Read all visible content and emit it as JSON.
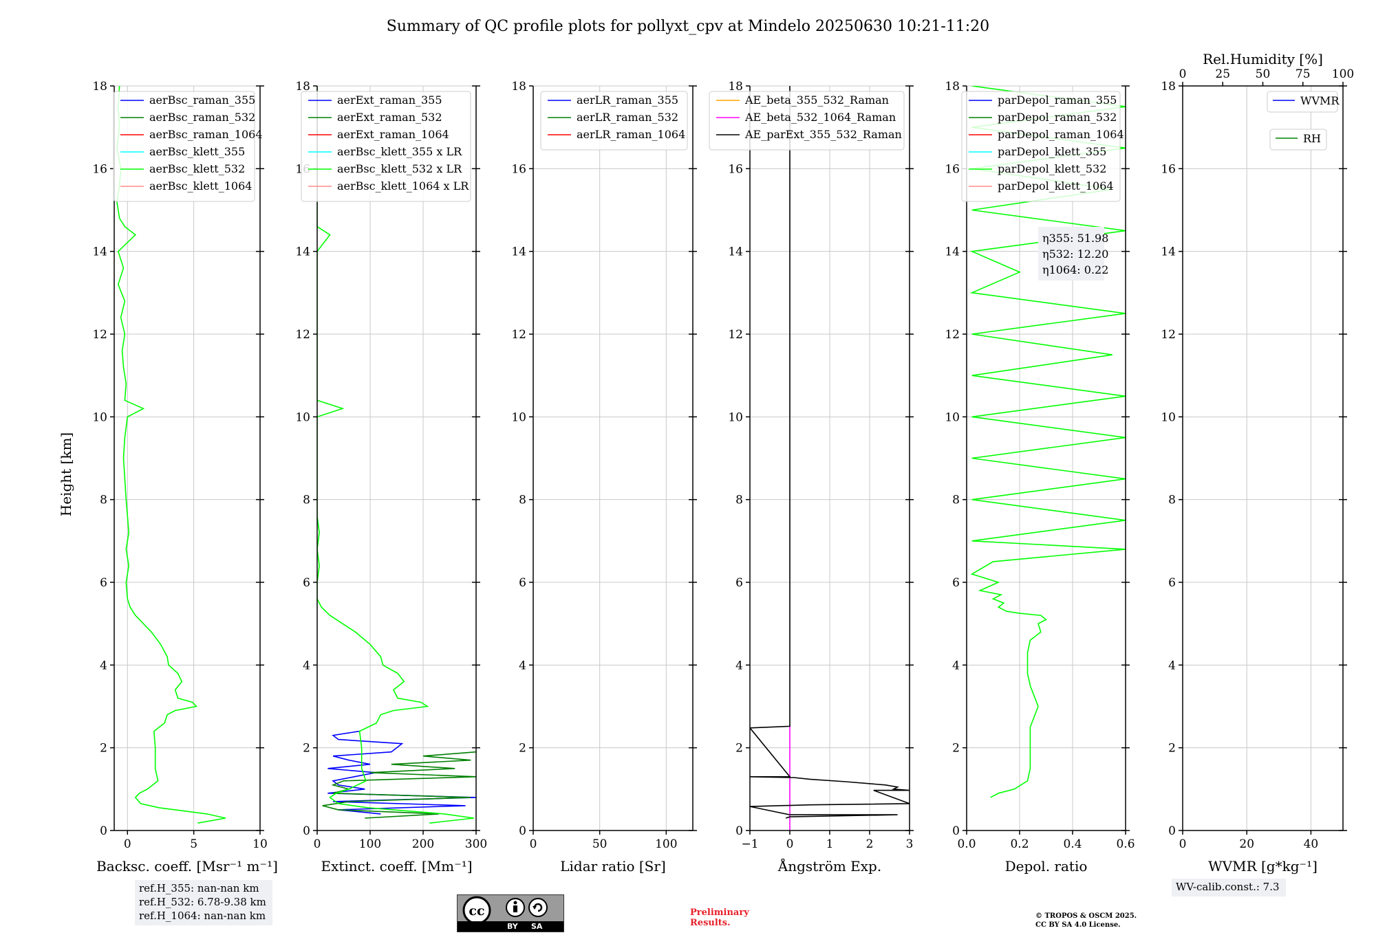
{
  "title": "Summary of QC profile plots for pollyxt_cpv at Mindelo 20250630 10:21-11:20",
  "y_axis_label": "Height [km]",
  "ref_heights": [
    "ref.H_355: nan-nan km",
    "ref.H_532: 6.78-9.38 km",
    "ref.H_1064: nan-nan km"
  ],
  "wv_calib": "WV-calib.const.: 7.3",
  "preliminary": [
    "Preliminary",
    "Results."
  ],
  "copyright": [
    "© TROPOS & OSCM 2025.",
    "CC BY SA 4.0 License."
  ],
  "cc_badge": {
    "by": "BY",
    "sa": "SA",
    "icon": "cc-by-sa-icon"
  },
  "colors": {
    "raman_355": "#0000ff",
    "raman_532": "#008000",
    "raman_1064": "#ff0000",
    "klett_355": "#00ffff",
    "klett_532": "#00ff00",
    "klett_1064": "#ff8c8c",
    "ae_355_532": "#ffa500",
    "ae_532_1064": "#ff00ff",
    "ae_parext": "#000000",
    "grid": "#c8c8c8"
  },
  "chart_data": [
    {
      "type": "line",
      "xlabel": "Backsc. coeff. [Msr⁻¹ m⁻¹]",
      "ylabel": "Height [km]",
      "xlim": [
        -1,
        10
      ],
      "ylim": [
        0,
        18
      ],
      "grid": true,
      "legend": "top-right",
      "xticks": [
        "0",
        "5",
        "10"
      ],
      "yticks": [
        "0",
        "2",
        "4",
        "6",
        "8",
        "10",
        "12",
        "14",
        "16",
        "18"
      ],
      "series": [
        {
          "name": "aerBsc_raman_355",
          "y": [],
          "x": []
        },
        {
          "name": "aerBsc_raman_532",
          "y": [],
          "x": []
        },
        {
          "name": "aerBsc_raman_1064",
          "y": [],
          "x": []
        },
        {
          "name": "aerBsc_klett_355",
          "y": [],
          "x": []
        },
        {
          "name": "aerBsc_klett_532",
          "y": [
            0.18,
            0.3,
            0.4,
            0.5,
            0.55,
            0.65,
            0.8,
            0.9,
            1.0,
            1.2,
            1.5,
            2.0,
            2.4,
            2.6,
            2.8,
            2.9,
            3.0,
            3.1,
            3.2,
            3.4,
            3.6,
            3.8,
            4.0,
            4.2,
            4.5,
            4.8,
            5.0,
            5.2,
            5.4,
            5.6,
            6.0,
            6.4,
            6.8,
            7.2,
            7.6,
            8.0,
            8.5,
            9.0,
            9.5,
            10.0,
            10.2,
            10.4,
            10.8,
            11.2,
            11.6,
            12.0,
            12.4,
            12.8,
            13.2,
            13.6,
            14.0,
            14.4,
            14.6,
            14.8,
            15.2,
            15.6,
            16.0,
            16.5,
            17.0,
            17.5,
            18.0
          ],
          "x": [
            5.3,
            7.4,
            6.0,
            3.6,
            2.4,
            1.0,
            0.6,
            0.9,
            1.5,
            2.3,
            2.1,
            2.1,
            2.0,
            2.8,
            3.0,
            3.6,
            5.2,
            4.9,
            3.8,
            3.6,
            4.1,
            3.8,
            3.1,
            3.0,
            2.5,
            1.8,
            1.2,
            0.6,
            0.2,
            0.0,
            -0.1,
            0.1,
            -0.1,
            0.1,
            0.0,
            -0.1,
            -0.2,
            -0.3,
            -0.2,
            0.0,
            1.2,
            -0.2,
            -0.1,
            -0.3,
            -0.4,
            -0.2,
            -0.5,
            -0.2,
            -0.7,
            -0.3,
            -0.7,
            0.6,
            -0.2,
            -0.6,
            -0.8,
            -0.6,
            -0.5,
            -0.8,
            -0.6,
            -0.7,
            -0.6
          ]
        },
        {
          "name": "aerBsc_klett_1064",
          "y": [],
          "x": []
        }
      ]
    },
    {
      "type": "line",
      "xlabel": "Extinct. coeff. [Mm⁻¹]",
      "ylabel": "",
      "xlim": [
        0,
        300
      ],
      "ylim": [
        0,
        18
      ],
      "grid": true,
      "legend": "top-right",
      "xticks": [
        "0",
        "100",
        "200",
        "300"
      ],
      "yticks": [
        "0",
        "2",
        "4",
        "6",
        "8",
        "10",
        "12",
        "14",
        "16",
        "18"
      ],
      "series": [
        {
          "name": "aerExt_raman_355",
          "y": [
            0.4,
            0.5,
            0.6,
            0.7,
            0.8,
            0.9,
            1.0,
            1.1,
            1.2,
            1.3,
            1.4,
            1.5,
            1.6,
            1.7,
            1.8,
            1.9,
            2.0,
            2.1,
            2.2,
            2.3,
            2.4
          ],
          "x": [
            120,
            40,
            280,
            30,
            300,
            20,
            90,
            40,
            30,
            70,
            110,
            20,
            100,
            60,
            30,
            140,
            150,
            160,
            40,
            30,
            80
          ]
        },
        {
          "name": "aerExt_raman_532",
          "y": [
            0.3,
            0.4,
            0.5,
            0.6,
            0.7,
            0.8,
            0.9,
            1.0,
            1.1,
            1.2,
            1.3,
            1.4,
            1.5,
            1.6,
            1.7,
            1.8,
            1.9
          ],
          "x": [
            90,
            230,
            40,
            10,
            60,
            290,
            30,
            60,
            30,
            50,
            300,
            100,
            260,
            140,
            290,
            200,
            300
          ]
        },
        {
          "name": "aerExt_raman_1064",
          "y": [],
          "x": []
        },
        {
          "name": "aerBsc_klett_355 x LR",
          "y": [],
          "x": []
        },
        {
          "name": "aerBsc_klett_532 x LR",
          "y": [
            0.18,
            0.3,
            0.4,
            0.5,
            0.55,
            0.65,
            0.8,
            0.9,
            1.0,
            1.2,
            1.5,
            2.0,
            2.4,
            2.6,
            2.8,
            2.9,
            3.0,
            3.1,
            3.2,
            3.4,
            3.6,
            3.8,
            4.0,
            4.2,
            4.5,
            4.8,
            5.0,
            5.2,
            5.4,
            5.6,
            6.0,
            6.4,
            6.8,
            7.2,
            7.6,
            8.0,
            8.5,
            9.0,
            9.5,
            10.0,
            10.2,
            10.4,
            10.8,
            11.2,
            11.6,
            12.0,
            12.4,
            12.8,
            13.2,
            13.6,
            14.0,
            14.4,
            14.6,
            14.8,
            15.2,
            15.6,
            16.0,
            16.5,
            17.0,
            17.5,
            18.0
          ],
          "x": [
            212,
            296,
            240,
            144,
            96,
            40,
            24,
            36,
            60,
            92,
            84,
            84,
            80,
            112,
            120,
            144,
            208,
            196,
            152,
            144,
            164,
            152,
            124,
            120,
            100,
            72,
            48,
            24,
            8,
            0,
            0,
            4,
            0,
            4,
            0,
            0,
            0,
            0,
            0,
            0,
            48,
            0,
            0,
            0,
            0,
            0,
            0,
            0,
            0,
            0,
            0,
            24,
            0,
            0,
            0,
            0,
            0,
            0,
            0,
            0,
            0
          ]
        },
        {
          "name": "aerBsc_klett_1064 x LR",
          "y": [],
          "x": []
        }
      ]
    },
    {
      "type": "line",
      "xlabel": "Lidar ratio [Sr]",
      "ylabel": "",
      "xlim": [
        0,
        120
      ],
      "ylim": [
        0,
        18
      ],
      "grid": true,
      "legend": "top-right",
      "xticks": [
        "0",
        "50",
        "100"
      ],
      "yticks": [
        "0",
        "2",
        "4",
        "6",
        "8",
        "10",
        "12",
        "14",
        "16",
        "18"
      ],
      "series": [
        {
          "name": "aerLR_raman_355",
          "y": [],
          "x": []
        },
        {
          "name": "aerLR_raman_532",
          "y": [],
          "x": []
        },
        {
          "name": "aerLR_raman_1064",
          "y": [],
          "x": []
        }
      ]
    },
    {
      "type": "line",
      "xlabel": "Ångström Exp.",
      "ylabel": "",
      "xlim": [
        -1,
        3
      ],
      "ylim": [
        0,
        18
      ],
      "grid": true,
      "legend": "top-right",
      "xticks": [
        "−1",
        "0",
        "1",
        "2",
        "3"
      ],
      "yticks": [
        "0",
        "2",
        "4",
        "6",
        "8",
        "10",
        "12",
        "14",
        "16",
        "18"
      ],
      "series": [
        {
          "name": "AE_beta_355_532_Raman",
          "y": [],
          "x": []
        },
        {
          "name": "AE_beta_532_1064_Raman",
          "y": [
            0.0,
            2.55
          ],
          "x": [
            0,
            0
          ]
        },
        {
          "name": "AE_parExt_355_532_Raman",
          "y": [
            0.3,
            0.33,
            0.38,
            0.38,
            0.58,
            0.62,
            0.65,
            0.65,
            0.97,
            0.97,
            1.0,
            1.05,
            1.1,
            1.18,
            1.24,
            1.28,
            1.3,
            1.3,
            2.48,
            2.52,
            2.55,
            2.55,
            18
          ],
          "x": [
            -0.1,
            0,
            2.7,
            0,
            -1,
            0.5,
            3.0,
            3.0,
            2.1,
            3.0,
            2.6,
            2.7,
            2.4,
            1.4,
            0.5,
            0.1,
            -1,
            0,
            -1,
            0,
            0,
            0,
            0
          ]
        }
      ]
    },
    {
      "type": "line",
      "xlabel": "Depol. ratio",
      "ylabel": "",
      "xlim": [
        0,
        0.6
      ],
      "ylim": [
        0,
        18
      ],
      "grid": true,
      "legend": "top-right",
      "xticks": [
        "0.0",
        "0.2",
        "0.4",
        "0.6"
      ],
      "yticks": [
        "0",
        "2",
        "4",
        "6",
        "8",
        "10",
        "12",
        "14",
        "16",
        "18"
      ],
      "annotation": [
        "η355: 51.98",
        "η532: 12.20",
        "η1064: 0.22"
      ],
      "series": [
        {
          "name": "parDepol_raman_355",
          "y": [],
          "x": []
        },
        {
          "name": "parDepol_raman_532",
          "y": [],
          "x": []
        },
        {
          "name": "parDepol_raman_1064",
          "y": [],
          "x": []
        },
        {
          "name": "parDepol_klett_355",
          "y": [],
          "x": []
        },
        {
          "name": "parDepol_klett_532",
          "y": [
            0.8,
            0.9,
            1.0,
            1.2,
            1.5,
            2.0,
            2.5,
            3.0,
            3.5,
            3.8,
            4.0,
            4.3,
            4.6,
            4.8,
            5.0,
            5.1,
            5.2,
            5.25,
            5.3,
            5.4,
            5.5,
            5.6,
            5.7,
            5.8,
            6.0,
            6.2,
            6.5,
            6.8,
            7.0,
            7.5,
            8.0,
            8.5,
            9.0,
            9.5,
            10.0,
            10.5,
            11.0,
            11.5,
            12.0,
            12.5,
            13.0,
            13.5,
            14.0,
            14.5,
            15.0,
            15.5,
            16.0,
            16.5,
            17.0,
            17.5,
            18.0
          ],
          "x": [
            0.09,
            0.12,
            0.18,
            0.23,
            0.24,
            0.24,
            0.24,
            0.27,
            0.24,
            0.23,
            0.23,
            0.23,
            0.24,
            0.28,
            0.27,
            0.3,
            0.28,
            0.2,
            0.15,
            0.12,
            0.14,
            0.1,
            0.13,
            0.05,
            0.12,
            0.02,
            0.1,
            0.6,
            0.02,
            0.6,
            0.02,
            0.6,
            0.02,
            0.6,
            0.02,
            0.6,
            0.02,
            0.55,
            0.02,
            0.6,
            0.02,
            0.2,
            0.02,
            0.6,
            0.02,
            0.55,
            0.02,
            0.6,
            0.02,
            0.6,
            0.02
          ]
        },
        {
          "name": "parDepol_klett_1064",
          "y": [],
          "x": []
        }
      ]
    },
    {
      "type": "line",
      "xlabel": "WVMR [g*kg⁻¹]",
      "ylabel": "",
      "x2label": "Rel.Humidity [%]",
      "xlim": [
        0,
        50
      ],
      "x2lim": [
        0,
        100
      ],
      "ylim": [
        0,
        18
      ],
      "grid": true,
      "legend": "top-right",
      "xticks": [
        "0",
        "20",
        "40"
      ],
      "x2ticks": [
        "0",
        "25",
        "50",
        "75",
        "100"
      ],
      "yticks": [
        "0",
        "2",
        "4",
        "6",
        "8",
        "10",
        "12",
        "14",
        "16",
        "18"
      ],
      "series": [
        {
          "name": "WVMR",
          "y": [],
          "x": []
        },
        {
          "name": "RH",
          "y": [],
          "x": []
        }
      ]
    }
  ]
}
